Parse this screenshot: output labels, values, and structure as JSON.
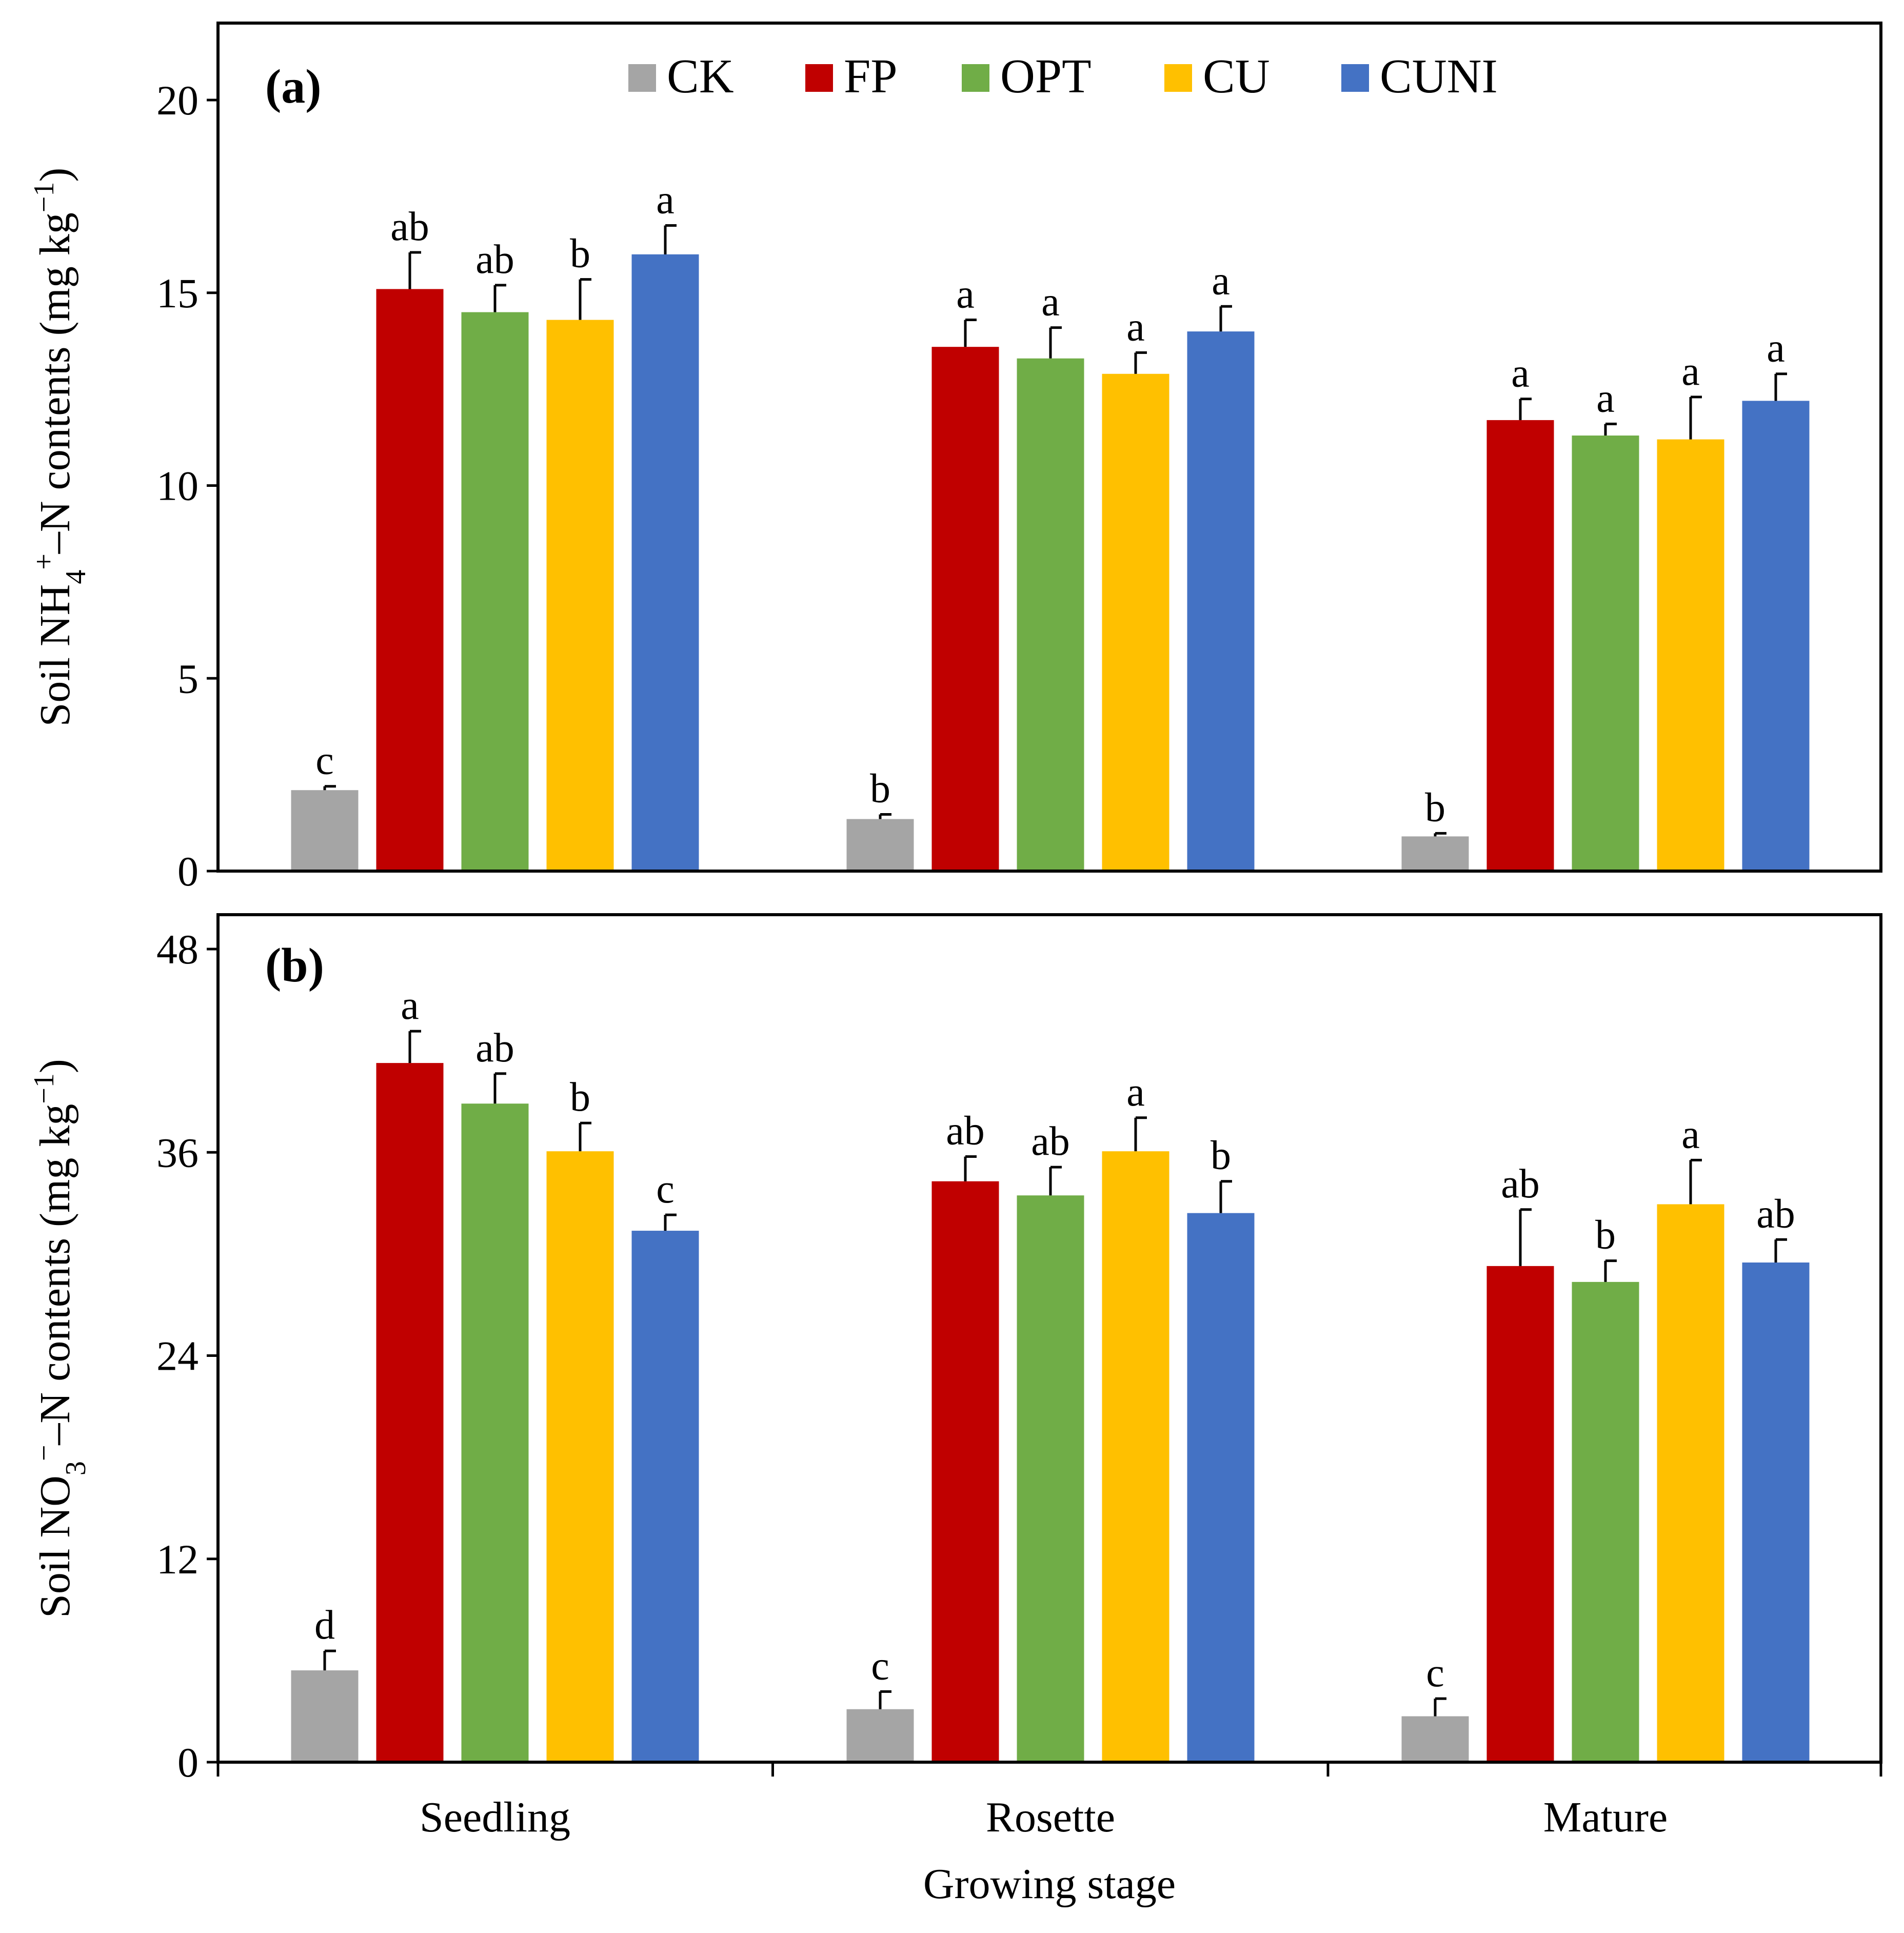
{
  "chart_data": [
    {
      "type": "bar",
      "panel_label": "(a)",
      "categories": [
        "Seedling",
        "Rosette",
        "Mature"
      ],
      "ylabel": {
        "main": "Soil NH",
        "sub": "4",
        "sup": "+",
        "rest": "–N contents (mg kg",
        "unit_sup": "−1",
        "close": ")"
      },
      "ylim": [
        0,
        22
      ],
      "yticks": [
        "0",
        "5",
        "10",
        "15",
        "20"
      ],
      "legend_position": "top-center",
      "series": [
        {
          "name": "CK",
          "color": "#A5A5A5",
          "values": [
            2.1,
            1.35,
            0.9
          ],
          "errors": [
            0.1,
            0.12,
            0.08
          ],
          "letters": [
            "c",
            "b",
            "b"
          ]
        },
        {
          "name": "FP",
          "color": "#C00000",
          "values": [
            15.1,
            13.6,
            11.7
          ],
          "errors": [
            0.95,
            0.7,
            0.55
          ],
          "letters": [
            "ab",
            "a",
            "a"
          ]
        },
        {
          "name": "OPT",
          "color": "#70AD47",
          "values": [
            14.5,
            13.3,
            11.3
          ],
          "errors": [
            0.7,
            0.8,
            0.3
          ],
          "letters": [
            "ab",
            "a",
            "a"
          ]
        },
        {
          "name": "CU",
          "color": "#FFC000",
          "values": [
            14.3,
            12.9,
            11.2
          ],
          "errors": [
            1.05,
            0.55,
            1.1
          ],
          "letters": [
            "b",
            "a",
            "a"
          ]
        },
        {
          "name": "CUNI",
          "color": "#4472C4",
          "values": [
            16.0,
            14.0,
            12.2
          ],
          "errors": [
            0.75,
            0.65,
            0.7
          ],
          "letters": [
            "a",
            "a",
            "a"
          ]
        }
      ]
    },
    {
      "type": "bar",
      "panel_label": "(b)",
      "categories": [
        "Seedling",
        "Rosette",
        "Mature"
      ],
      "xlabel": "Growing stage",
      "ylabel": {
        "main": "Soil NO",
        "sub": "3",
        "sup": "−",
        "rest": "–N contents (mg kg",
        "unit_sup": "−1",
        "close": ")"
      },
      "ylim": [
        0,
        48
      ],
      "yticks": [
        "0",
        "12",
        "24",
        "36",
        "48"
      ],
      "series": [
        {
          "name": "CK",
          "color": "#A5A5A5",
          "values": [
            5.2,
            3.0,
            2.6
          ],
          "errors": [
            1.1,
            1.0,
            1.0
          ],
          "letters": [
            "d",
            "c",
            "c"
          ]
        },
        {
          "name": "FP",
          "color": "#C00000",
          "values": [
            39.6,
            32.9,
            28.1
          ],
          "errors": [
            1.8,
            1.4,
            3.2
          ],
          "letters": [
            "a",
            "ab",
            "ab"
          ]
        },
        {
          "name": "OPT",
          "color": "#70AD47",
          "values": [
            37.3,
            32.1,
            27.2
          ],
          "errors": [
            1.7,
            1.6,
            1.2
          ],
          "letters": [
            "ab",
            "ab",
            "b"
          ]
        },
        {
          "name": "CU",
          "color": "#FFC000",
          "values": [
            34.6,
            34.6,
            31.6
          ],
          "errors": [
            1.6,
            1.9,
            2.5
          ],
          "letters": [
            "b",
            "a",
            "a"
          ]
        },
        {
          "name": "CUNI",
          "color": "#4472C4",
          "values": [
            30.1,
            31.1,
            28.3
          ],
          "errors": [
            0.9,
            1.8,
            1.3
          ],
          "letters": [
            "c",
            "b",
            "ab"
          ]
        }
      ]
    }
  ]
}
